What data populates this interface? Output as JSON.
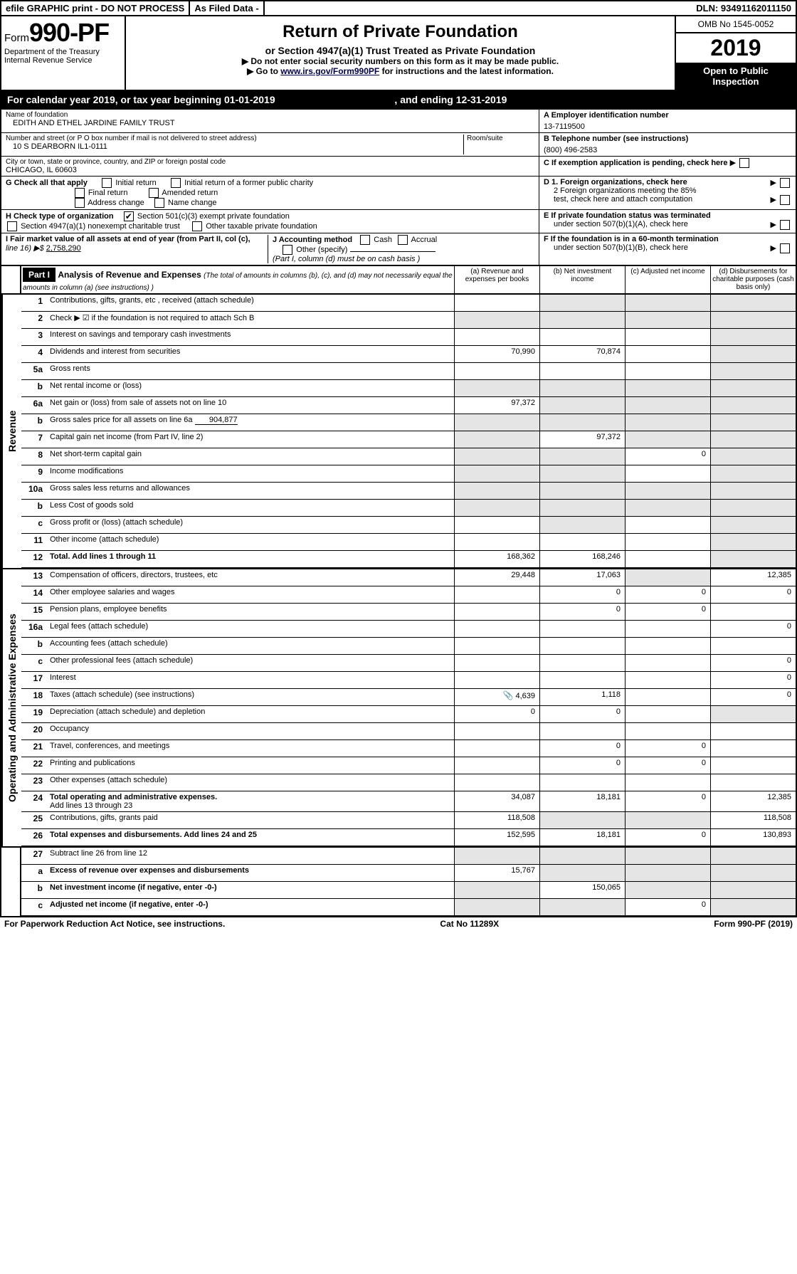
{
  "topbar": {
    "efile": "efile GRAPHIC print - DO NOT PROCESS",
    "asfiled": "As Filed Data -",
    "dln_label": "DLN:",
    "dln": "93491162011150"
  },
  "header": {
    "form_prefix": "Form",
    "form_number": "990-PF",
    "dept1": "Department of the Treasury",
    "dept2": "Internal Revenue Service",
    "title": "Return of Private Foundation",
    "subtitle": "or Section 4947(a)(1) Trust Treated as Private Foundation",
    "note1": "▶ Do not enter social security numbers on this form as it may be made public.",
    "note2_pre": "▶ Go to ",
    "note2_link": "www.irs.gov/Form990PF",
    "note2_post": " for instructions and the latest information.",
    "omb": "OMB No 1545-0052",
    "year": "2019",
    "open1": "Open to Public",
    "open2": "Inspection"
  },
  "calyear": {
    "pre": "For calendar year 2019, or tax year beginning ",
    "start": "01-01-2019",
    "mid": " , and ending ",
    "end": "12-31-2019"
  },
  "nameblock": {
    "label": "Name of foundation",
    "value": "EDITH AND ETHEL JARDINE FAMILY TRUST",
    "a_label": "A Employer identification number",
    "ein": "13-7119500"
  },
  "addrblock": {
    "label": "Number and street (or P O   box number if mail is not delivered to street address)",
    "room": "Room/suite",
    "value": "10 S DEARBORN IL1-0111",
    "b_label": "B Telephone number (see instructions)",
    "phone": "(800) 496-2583"
  },
  "cityblock": {
    "label": "City or town, state or province, country, and ZIP or foreign postal code",
    "value": "CHICAGO, IL  60603",
    "c_label": "C If exemption application is pending, check here"
  },
  "g": {
    "label": "G Check all that apply",
    "opts": [
      "Initial return",
      "Initial return of a former public charity",
      "Final return",
      "Amended return",
      "Address change",
      "Name change"
    ]
  },
  "h": {
    "label": "H Check type of organization",
    "opt1": "Section 501(c)(3) exempt private foundation",
    "opt2": "Section 4947(a)(1) nonexempt charitable trust",
    "opt3": "Other taxable private foundation"
  },
  "d": {
    "d1": "D 1. Foreign organizations, check here",
    "d2a": "2 Foreign organizations meeting the 85%",
    "d2b": "test, check here and attach computation"
  },
  "e": {
    "e1": "E  If private foundation status was terminated",
    "e2": "under section 507(b)(1)(A), check here"
  },
  "i": {
    "label": "I Fair market value of all assets at end of year (from Part II, col  (c),",
    "line": "line 16) ▶$ ",
    "value": "2,758,290"
  },
  "j": {
    "label": "J Accounting method",
    "cash": "Cash",
    "accrual": "Accrual",
    "other": "Other (specify)",
    "note": "(Part I, column (d) must be on cash basis )"
  },
  "f": {
    "f1": "F  If the foundation is in a 60-month termination",
    "f2": "under section 507(b)(1)(B), check here"
  },
  "part1": {
    "tag": "Part I",
    "title": "Analysis of Revenue and Expenses",
    "title_note": " (The total of amounts in columns (b), (c), and (d) may not necessarily equal the amounts in column (a) (see instructions) )",
    "col_a": "(a)   Revenue and expenses per books",
    "col_b": "(b)  Net investment income",
    "col_c": "(c)  Adjusted net income",
    "col_d": "(d)  Disbursements for charitable purposes (cash basis only)"
  },
  "revenue_label": "Revenue",
  "expenses_label": "Operating and Administrative Expenses",
  "rows": {
    "r1": {
      "n": "1",
      "t": "Contributions, gifts, grants, etc , received (attach schedule)"
    },
    "r2": {
      "n": "2",
      "t": "Check ▶ ☑ if the foundation is not required to attach Sch  B"
    },
    "r3": {
      "n": "3",
      "t": "Interest on savings and temporary cash investments"
    },
    "r4": {
      "n": "4",
      "t": "Dividends and interest from securities",
      "a": "70,990",
      "b": "70,874"
    },
    "r5a": {
      "n": "5a",
      "t": "Gross rents"
    },
    "r5b": {
      "n": "b",
      "t": "Net rental income or (loss)"
    },
    "r6a": {
      "n": "6a",
      "t": "Net gain or (loss) from sale of assets not on line 10",
      "a": "97,372"
    },
    "r6b": {
      "n": "b",
      "t": "Gross sales price for all assets on line 6a",
      "inline": "904,877"
    },
    "r7": {
      "n": "7",
      "t": "Capital gain net income (from Part IV, line 2)",
      "b": "97,372"
    },
    "r8": {
      "n": "8",
      "t": "Net short-term capital gain",
      "c": "0"
    },
    "r9": {
      "n": "9",
      "t": "Income modifications"
    },
    "r10a": {
      "n": "10a",
      "t": "Gross sales less returns and allowances"
    },
    "r10b": {
      "n": "b",
      "t": "Less   Cost of goods sold"
    },
    "r10c": {
      "n": "c",
      "t": "Gross profit or (loss) (attach schedule)"
    },
    "r11": {
      "n": "11",
      "t": "Other income (attach schedule)"
    },
    "r12": {
      "n": "12",
      "t": "Total. Add lines 1 through 11",
      "a": "168,362",
      "b": "168,246"
    },
    "r13": {
      "n": "13",
      "t": "Compensation of officers, directors, trustees, etc",
      "a": "29,448",
      "b": "17,063",
      "d": "12,385"
    },
    "r14": {
      "n": "14",
      "t": "Other employee salaries and wages",
      "b": "0",
      "c": "0",
      "d": "0"
    },
    "r15": {
      "n": "15",
      "t": "Pension plans, employee benefits",
      "b": "0",
      "c": "0"
    },
    "r16a": {
      "n": "16a",
      "t": "Legal fees (attach schedule)",
      "d": "0"
    },
    "r16b": {
      "n": "b",
      "t": "Accounting fees (attach schedule)"
    },
    "r16c": {
      "n": "c",
      "t": "Other professional fees (attach schedule)",
      "d": "0"
    },
    "r17": {
      "n": "17",
      "t": "Interest",
      "d": "0"
    },
    "r18": {
      "n": "18",
      "t": "Taxes (attach schedule) (see instructions)",
      "a": "4,639",
      "b": "1,118",
      "d": "0",
      "icon": "📎"
    },
    "r19": {
      "n": "19",
      "t": "Depreciation (attach schedule) and depletion",
      "a": "0",
      "b": "0"
    },
    "r20": {
      "n": "20",
      "t": "Occupancy"
    },
    "r21": {
      "n": "21",
      "t": "Travel, conferences, and meetings",
      "b": "0",
      "c": "0"
    },
    "r22": {
      "n": "22",
      "t": "Printing and publications",
      "b": "0",
      "c": "0"
    },
    "r23": {
      "n": "23",
      "t": "Other expenses (attach schedule)"
    },
    "r24": {
      "n": "24",
      "t": "Total operating and administrative expenses.",
      "t2": "Add lines 13 through 23",
      "a": "34,087",
      "b": "18,181",
      "c": "0",
      "d": "12,385"
    },
    "r25": {
      "n": "25",
      "t": "Contributions, gifts, grants paid",
      "a": "118,508",
      "d": "118,508"
    },
    "r26": {
      "n": "26",
      "t": "Total expenses and disbursements. Add lines 24 and 25",
      "a": "152,595",
      "b": "18,181",
      "c": "0",
      "d": "130,893"
    },
    "r27": {
      "n": "27",
      "t": "Subtract line 26 from line 12"
    },
    "r27a": {
      "n": "a",
      "t": "Excess of revenue over expenses and disbursements",
      "a": "15,767"
    },
    "r27b": {
      "n": "b",
      "t": "Net investment income (if negative, enter -0-)",
      "b": "150,065"
    },
    "r27c": {
      "n": "c",
      "t": "Adjusted net income (if negative, enter -0-)",
      "c": "0"
    }
  },
  "footer": {
    "left": "For Paperwork Reduction Act Notice, see instructions.",
    "mid": "Cat  No  11289X",
    "right": "Form 990-PF (2019)"
  },
  "colors": {
    "black": "#000000",
    "white": "#ffffff",
    "shade": "#e5e5e5",
    "link": "#000044"
  }
}
